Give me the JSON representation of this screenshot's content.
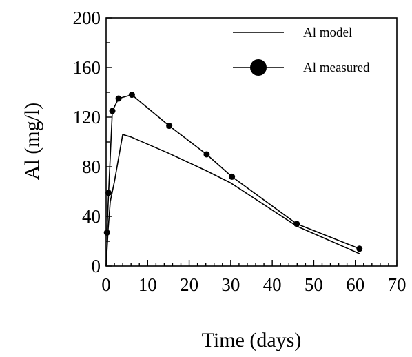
{
  "chart_data": {
    "type": "line",
    "title": "",
    "xlabel": "Time (days)",
    "ylabel": "Al (mg/l)",
    "xlim": [
      0,
      70
    ],
    "ylim": [
      0,
      200
    ],
    "x_ticks": [
      0,
      10,
      20,
      30,
      40,
      50,
      60,
      70
    ],
    "y_ticks": [
      0,
      40,
      80,
      120,
      160,
      200
    ],
    "x_tick_labels": [
      "0",
      "10",
      "20",
      "30",
      "40",
      "50",
      "60",
      "70"
    ],
    "y_tick_labels": [
      "0",
      "40",
      "80",
      "120",
      "160",
      "200"
    ],
    "grid": false,
    "legend_position": "top-right",
    "series": [
      {
        "name": "Al model",
        "marker": "none",
        "x": [
          0,
          0.5,
          1.0,
          2.0,
          4.0,
          6.0,
          15.0,
          24.0,
          30.0,
          46.0,
          61.0
        ],
        "y": [
          0,
          30,
          52,
          68,
          106,
          104,
          91,
          77,
          67,
          32,
          10
        ]
      },
      {
        "name": "Al measured",
        "marker": "circle",
        "x": [
          0.2,
          0.6,
          1.5,
          3.0,
          6.2,
          15.2,
          24.2,
          30.3,
          45.9,
          61.0
        ],
        "y": [
          27,
          59,
          125,
          135,
          138,
          113,
          90,
          72,
          34,
          14
        ]
      }
    ]
  }
}
